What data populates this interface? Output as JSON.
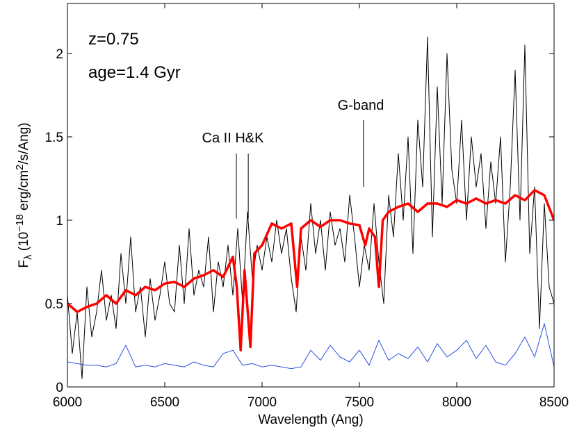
{
  "chart_data": {
    "type": "line",
    "xlabel": "Wavelength (Ang)",
    "ylabel": [
      "F",
      "λ",
      " (10",
      "−18",
      " erg/cm",
      "2",
      "/s/Ang)"
    ],
    "annotations": [
      "z=0.75",
      "age=1.4 Gyr",
      "Ca II H&K",
      "G-band"
    ],
    "marker_lines": [
      {
        "x": 6868,
        "y": [
          1.01,
          1.4
        ]
      },
      {
        "x": 6929,
        "y": [
          1.01,
          1.4
        ]
      },
      {
        "x": 7521,
        "y": [
          1.2,
          1.6
        ]
      }
    ],
    "xlim": [
      6000,
      8500
    ],
    "xticks": [
      6000,
      6500,
      7000,
      7500,
      8000,
      8500
    ],
    "ylim": [
      0,
      2.3
    ],
    "yticks": [
      0,
      0.5,
      1,
      1.5,
      2
    ],
    "series": [
      {
        "color": "#000000",
        "width": 1,
        "x": [
          6000,
          6025,
          6050,
          6075,
          6100,
          6125,
          6150,
          6175,
          6200,
          6225,
          6250,
          6275,
          6300,
          6325,
          6350,
          6375,
          6400,
          6425,
          6450,
          6475,
          6500,
          6525,
          6550,
          6575,
          6600,
          6625,
          6650,
          6675,
          6700,
          6725,
          6750,
          6775,
          6800,
          6825,
          6850,
          6875,
          6900,
          6925,
          6950,
          6975,
          7000,
          7025,
          7050,
          7075,
          7100,
          7125,
          7150,
          7175,
          7200,
          7225,
          7250,
          7275,
          7300,
          7325,
          7350,
          7375,
          7400,
          7425,
          7450,
          7475,
          7500,
          7525,
          7550,
          7575,
          7600,
          7625,
          7650,
          7675,
          7700,
          7725,
          7750,
          7775,
          7800,
          7825,
          7850,
          7875,
          7900,
          7925,
          7950,
          7975,
          8000,
          8025,
          8050,
          8075,
          8100,
          8125,
          8150,
          8175,
          8200,
          8225,
          8250,
          8275,
          8300,
          8325,
          8350,
          8375,
          8400,
          8425,
          8450,
          8475,
          8500
        ],
        "values": [
          0.55,
          0.2,
          0.45,
          0.05,
          0.6,
          0.3,
          0.45,
          0.7,
          0.4,
          0.55,
          0.35,
          0.8,
          0.5,
          0.9,
          0.45,
          0.6,
          0.3,
          0.65,
          0.4,
          0.55,
          0.75,
          0.5,
          0.45,
          0.85,
          0.5,
          0.95,
          0.55,
          0.7,
          0.6,
          0.9,
          0.45,
          0.75,
          0.6,
          0.85,
          0.55,
          0.95,
          0.5,
          1.05,
          0.65,
          0.85,
          0.7,
          0.9,
          0.75,
          1.0,
          0.8,
          0.95,
          0.65,
          0.45,
          0.9,
          0.7,
          1.1,
          0.8,
          1.0,
          0.7,
          1.05,
          0.85,
          0.95,
          0.75,
          1.15,
          0.9,
          0.6,
          0.85,
          0.7,
          1.1,
          0.75,
          0.5,
          1.15,
          0.9,
          1.4,
          1.0,
          1.5,
          0.8,
          1.6,
          1.2,
          2.1,
          0.9,
          1.8,
          1.1,
          2.0,
          1.3,
          1.1,
          1.6,
          1.0,
          1.5,
          1.2,
          1.4,
          0.95,
          1.35,
          1.1,
          1.5,
          0.75,
          1.2,
          1.9,
          1.0,
          2.05,
          0.8,
          1.2,
          0.35,
          1.1,
          0.6,
          0.5
        ]
      },
      {
        "color": "#ff0000",
        "width": 3.5,
        "x": [
          6000,
          6050,
          6100,
          6150,
          6200,
          6250,
          6300,
          6350,
          6400,
          6450,
          6500,
          6550,
          6600,
          6650,
          6700,
          6750,
          6800,
          6850,
          6870,
          6890,
          6910,
          6940,
          6960,
          7000,
          7050,
          7100,
          7150,
          7180,
          7200,
          7250,
          7300,
          7350,
          7400,
          7450,
          7500,
          7530,
          7550,
          7580,
          7600,
          7620,
          7650,
          7700,
          7750,
          7800,
          7850,
          7900,
          7950,
          8000,
          8050,
          8100,
          8150,
          8200,
          8250,
          8300,
          8350,
          8400,
          8450,
          8500
        ],
        "values": [
          0.5,
          0.45,
          0.48,
          0.5,
          0.55,
          0.5,
          0.58,
          0.55,
          0.6,
          0.58,
          0.62,
          0.63,
          0.6,
          0.65,
          0.67,
          0.7,
          0.66,
          0.78,
          0.6,
          0.22,
          0.7,
          0.24,
          0.8,
          0.85,
          0.98,
          0.95,
          0.98,
          0.6,
          0.95,
          1.0,
          0.96,
          1.0,
          1.0,
          0.98,
          0.97,
          0.85,
          0.95,
          0.9,
          0.6,
          1.0,
          1.05,
          1.08,
          1.1,
          1.05,
          1.1,
          1.1,
          1.08,
          1.12,
          1.1,
          1.13,
          1.1,
          1.12,
          1.1,
          1.15,
          1.12,
          1.18,
          1.15,
          1.0
        ]
      },
      {
        "color": "#2a4fe0",
        "width": 1,
        "x": [
          6000,
          6050,
          6100,
          6150,
          6200,
          6250,
          6300,
          6350,
          6400,
          6450,
          6500,
          6550,
          6600,
          6650,
          6700,
          6750,
          6800,
          6850,
          6900,
          6950,
          7000,
          7050,
          7100,
          7150,
          7200,
          7250,
          7300,
          7350,
          7400,
          7450,
          7500,
          7550,
          7600,
          7650,
          7700,
          7750,
          7800,
          7850,
          7900,
          7950,
          8000,
          8050,
          8100,
          8150,
          8200,
          8250,
          8300,
          8350,
          8400,
          8450,
          8500
        ],
        "values": [
          0.15,
          0.14,
          0.13,
          0.13,
          0.12,
          0.14,
          0.25,
          0.12,
          0.13,
          0.12,
          0.14,
          0.13,
          0.12,
          0.15,
          0.13,
          0.12,
          0.2,
          0.22,
          0.13,
          0.14,
          0.12,
          0.13,
          0.12,
          0.11,
          0.12,
          0.22,
          0.16,
          0.25,
          0.18,
          0.15,
          0.22,
          0.13,
          0.28,
          0.16,
          0.2,
          0.17,
          0.24,
          0.15,
          0.26,
          0.18,
          0.22,
          0.28,
          0.17,
          0.25,
          0.15,
          0.13,
          0.2,
          0.3,
          0.18,
          0.38,
          0.12
        ]
      }
    ]
  }
}
